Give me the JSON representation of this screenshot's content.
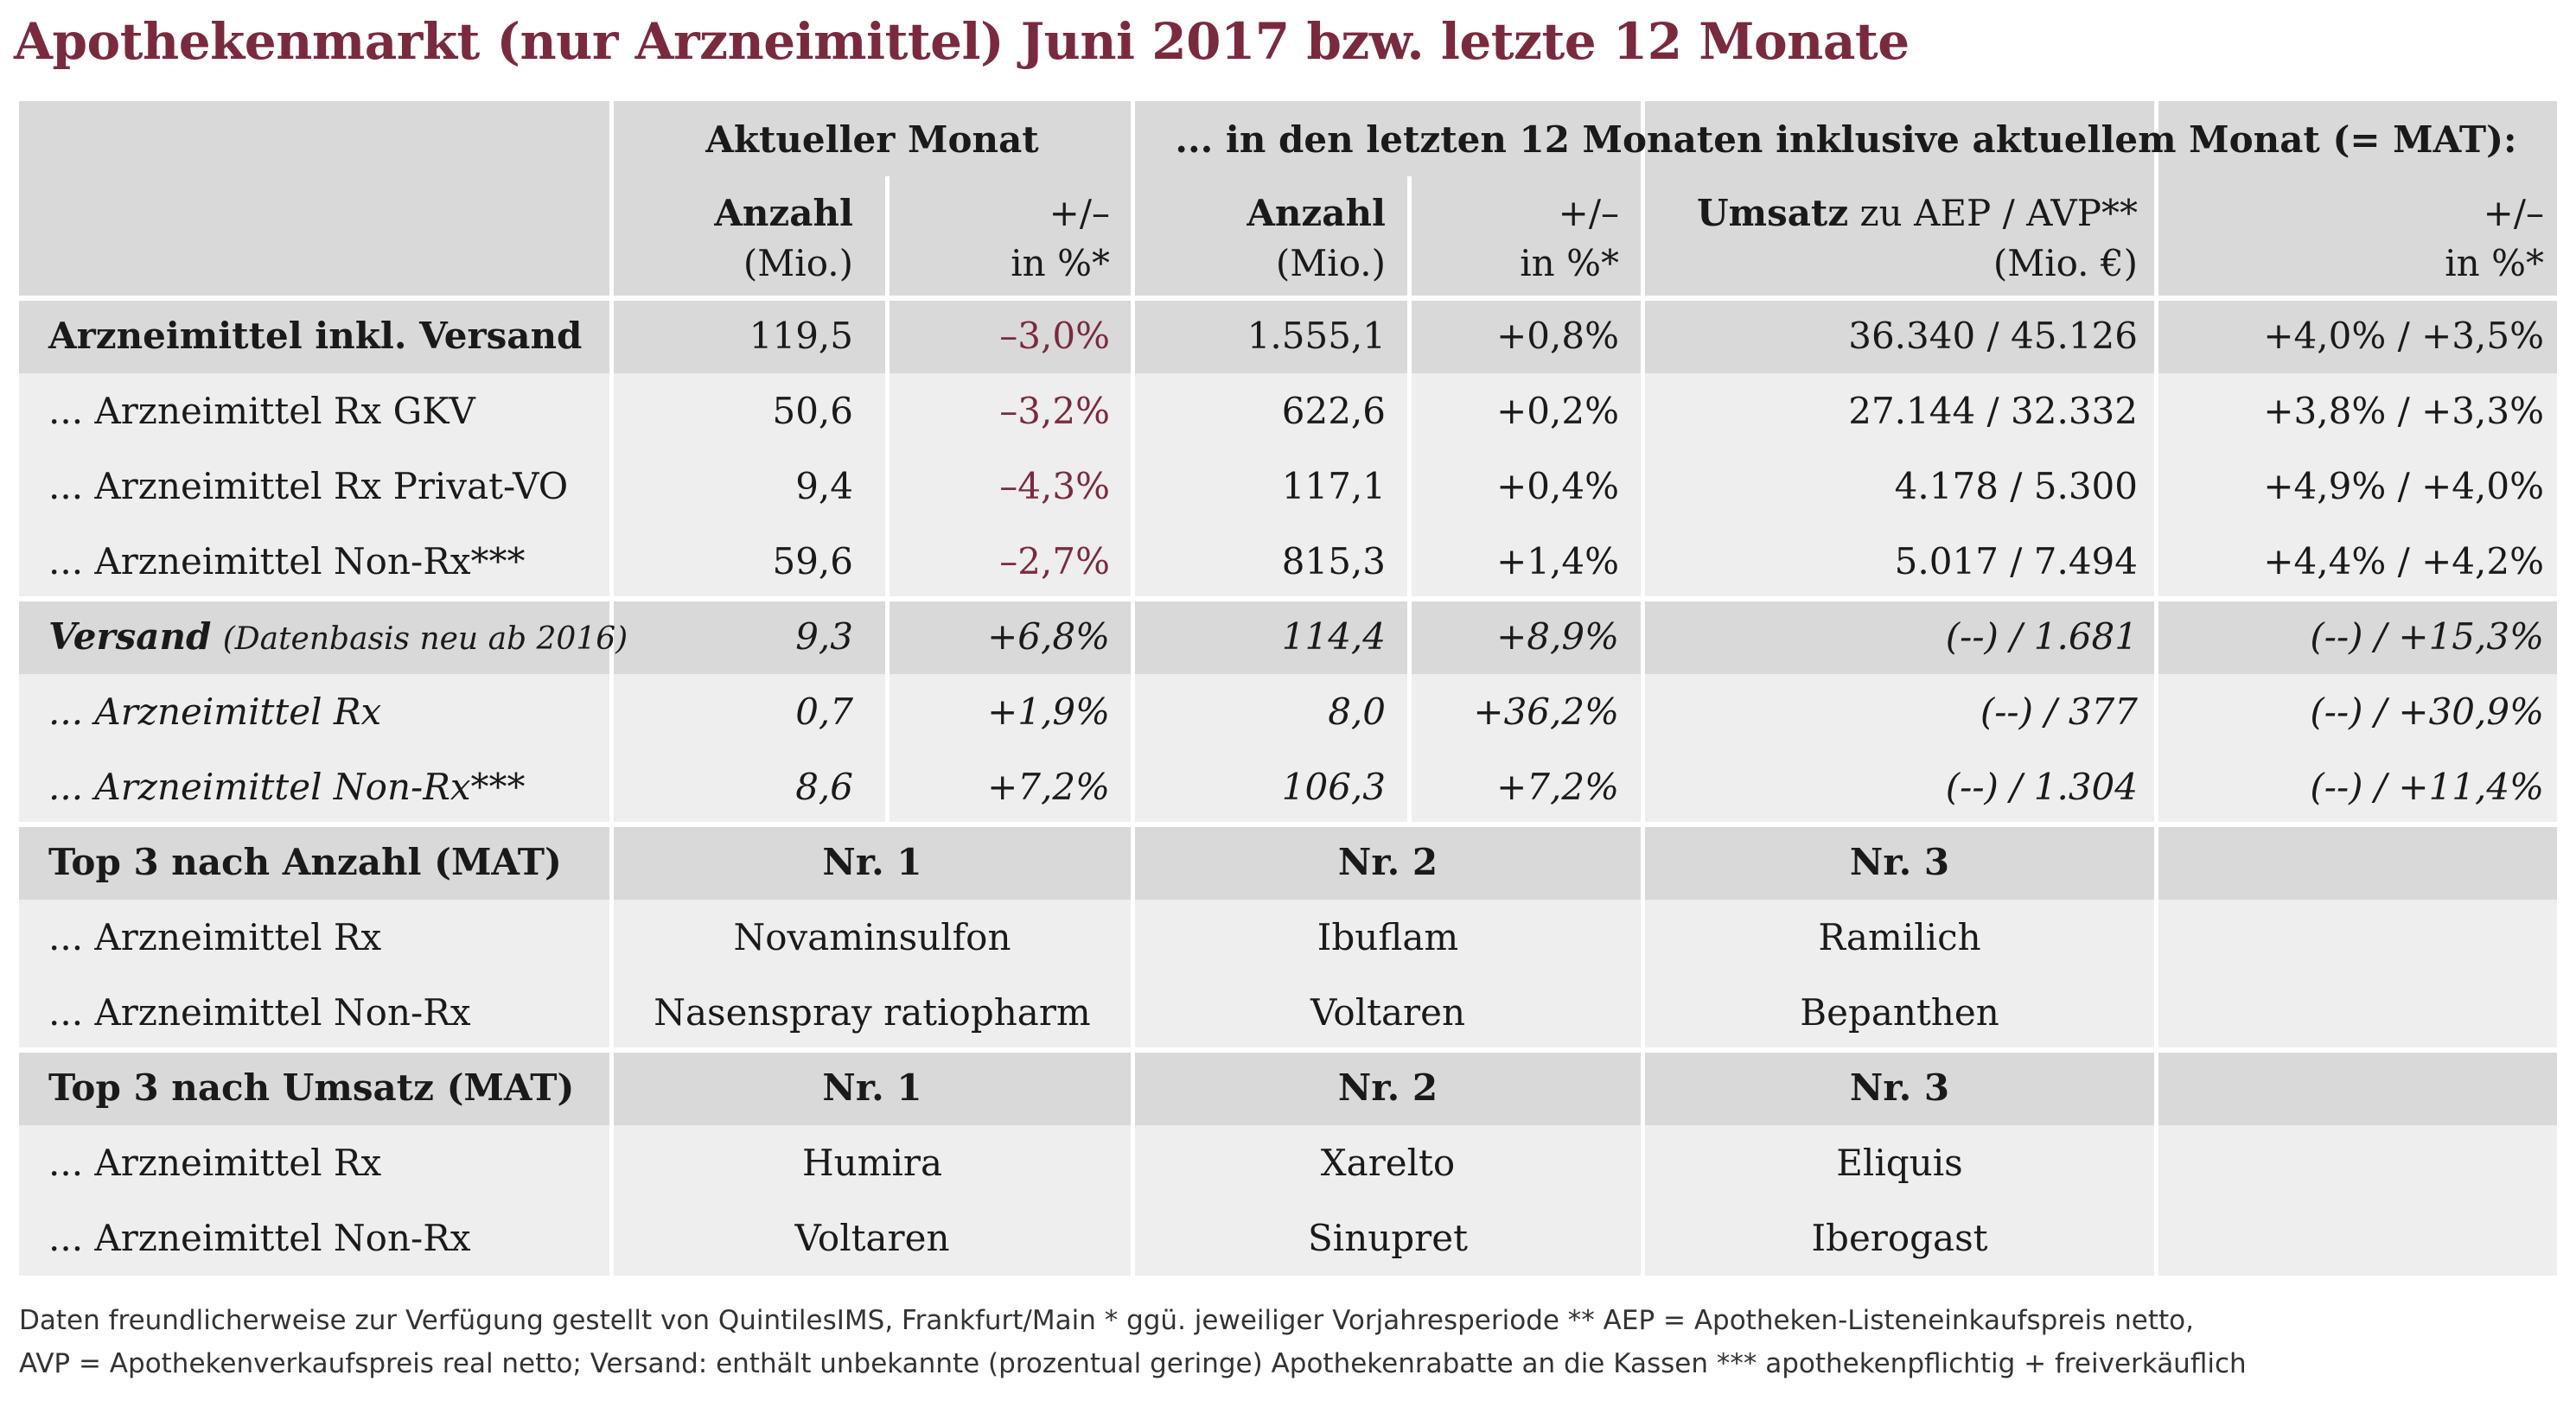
{
  "title": "Apothekenmarkt (nur Arzneimittel) Juni 2017 bzw. letzte 12 Monate",
  "header": {
    "group_current": "Aktueller Monat",
    "group_mat": "... in den letzten 12 Monaten inklusive aktuellem Monat (= MAT):",
    "col_anzahl_1": "Anzahl",
    "col_anzahl_2": "(Mio.)",
    "col_change_1": "+/–",
    "col_change_2": "in %*",
    "col_umsatz_bold": "Umsatz",
    "col_umsatz_rest": " zu AEP / AVP**",
    "col_umsatz_2": "(Mio. €)"
  },
  "rows": [
    {
      "label": "Arzneimittel inkl. Versand",
      "c1": "119,5",
      "c2": "–3,0%",
      "c3": "1.555,1",
      "c4": "+0,8%",
      "c5": "36.340 / 45.126",
      "c6": "+4,0% / +3,5%"
    },
    {
      "label": "... Arzneimittel Rx GKV",
      "c1": "50,6",
      "c2": "–3,2%",
      "c3": "622,6",
      "c4": "+0,2%",
      "c5": "27.144 / 32.332",
      "c6": "+3,8% / +3,3%"
    },
    {
      "label": "... Arzneimittel Rx Privat-VO",
      "c1": "9,4",
      "c2": "–4,3%",
      "c3": "117,1",
      "c4": "+0,4%",
      "c5": "4.178 / 5.300",
      "c6": "+4,9% / +4,0%"
    },
    {
      "label": "... Arzneimittel Non-Rx***",
      "c1": "59,6",
      "c2": "–2,7%",
      "c3": "815,3",
      "c4": "+1,4%",
      "c5": "5.017 / 7.494",
      "c6": "+4,4% / +4,2%"
    },
    {
      "label": "Versand",
      "label_note": "(Datenbasis neu ab 2016)",
      "c1": "9,3",
      "c2": "+6,8%",
      "c3": "114,4",
      "c4": "+8,9%",
      "c5": "(--) / 1.681",
      "c6": "(--) / +15,3%"
    },
    {
      "label": "... Arzneimittel Rx",
      "c1": "0,7",
      "c2": "+1,9%",
      "c3": "8,0",
      "c4": "+36,2%",
      "c5": "(--) / 377",
      "c6": "(--) / +30,9%"
    },
    {
      "label": "... Arzneimittel Non-Rx***",
      "c1": "8,6",
      "c2": "+7,2%",
      "c3": "106,3",
      "c4": "+7,2%",
      "c5": "(--) / 1.304",
      "c6": "(--) / +11,4%"
    }
  ],
  "top_anzahl": {
    "heading": "Top 3 nach Anzahl (MAT)",
    "nr1": "Nr. 1",
    "nr2": "Nr. 2",
    "nr3": "Nr. 3",
    "rx_label": "... Arzneimittel Rx",
    "rx": [
      "Novaminsulfon",
      "Ibuflam",
      "Ramilich"
    ],
    "nonrx_label": "... Arzneimittel Non-Rx",
    "nonrx": [
      "Nasenspray ratiopharm",
      "Voltaren",
      "Bepanthen"
    ]
  },
  "top_umsatz": {
    "heading": "Top 3 nach Umsatz (MAT)",
    "nr1": "Nr. 1",
    "nr2": "Nr. 2",
    "nr3": "Nr. 3",
    "rx_label": "... Arzneimittel Rx",
    "rx": [
      "Humira",
      "Xarelto",
      "Eliquis"
    ],
    "nonrx_label": "... Arzneimittel Non-Rx",
    "nonrx": [
      "Voltaren",
      "Sinupret",
      "Iberogast"
    ]
  },
  "footnote_1": "Daten freundlicherweise zur Verfügung gestellt von QuintilesIMS, Frankfurt/Main   * ggü. jeweiliger Vorjahresperiode   ** AEP = Apotheken-Listeneinkaufspreis netto,",
  "footnote_2": "AVP = Apothekenverkaufspreis real netto; Versand: enthält unbekannte (prozentual geringe) Apothekenrabatte an die Kassen   *** apothekenpflichtig + freiverkäuflich",
  "colors": {
    "accent": "#7a2a3f",
    "header_bg": "#d9d9d9",
    "row_bg": "#eeeeee"
  }
}
